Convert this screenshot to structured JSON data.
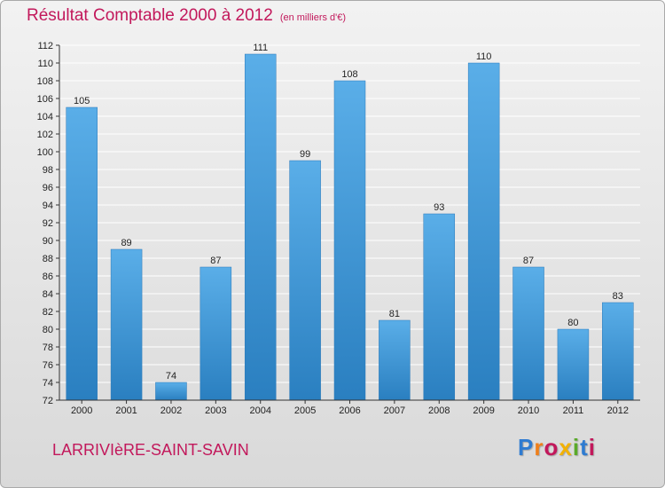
{
  "chart_data": {
    "type": "bar",
    "title": "Résultat Comptable 2000 à 2012",
    "subtitle": "(en milliers d'€)",
    "categories": [
      "2000",
      "2001",
      "2002",
      "2003",
      "2004",
      "2005",
      "2006",
      "2007",
      "2008",
      "2009",
      "2010",
      "2011",
      "2012"
    ],
    "values": [
      105,
      89,
      74,
      87,
      111,
      99,
      108,
      81,
      93,
      110,
      87,
      80,
      83
    ],
    "data_labels": [
      "105",
      "89",
      "74",
      "87",
      "111",
      "99",
      "108",
      "81",
      "93",
      "110",
      "87",
      "80",
      "83"
    ],
    "y_ticks": [
      72,
      74,
      76,
      78,
      80,
      82,
      84,
      86,
      88,
      90,
      92,
      94,
      96,
      98,
      100,
      102,
      104,
      106,
      108,
      110,
      112
    ],
    "ylim": [
      72,
      112
    ],
    "xlabel": "",
    "ylabel": "",
    "grid": true
  },
  "place_name": "LARRIVIèRE-SAINT-SAVIN",
  "logo": {
    "letters": [
      "P",
      "r",
      "o",
      "x",
      "i",
      "t",
      "i"
    ],
    "colors": [
      "#2e7bd1",
      "#ef7f1a",
      "#c2185b",
      "#f2b100",
      "#5aaa2a",
      "#2e7bd1",
      "#c2185b"
    ]
  },
  "colors": {
    "title": "#c2185b",
    "bar_light": "#5aaee8",
    "bar_dark": "#2a7fc0",
    "grid": "#ffffff",
    "axis": "#333333"
  }
}
